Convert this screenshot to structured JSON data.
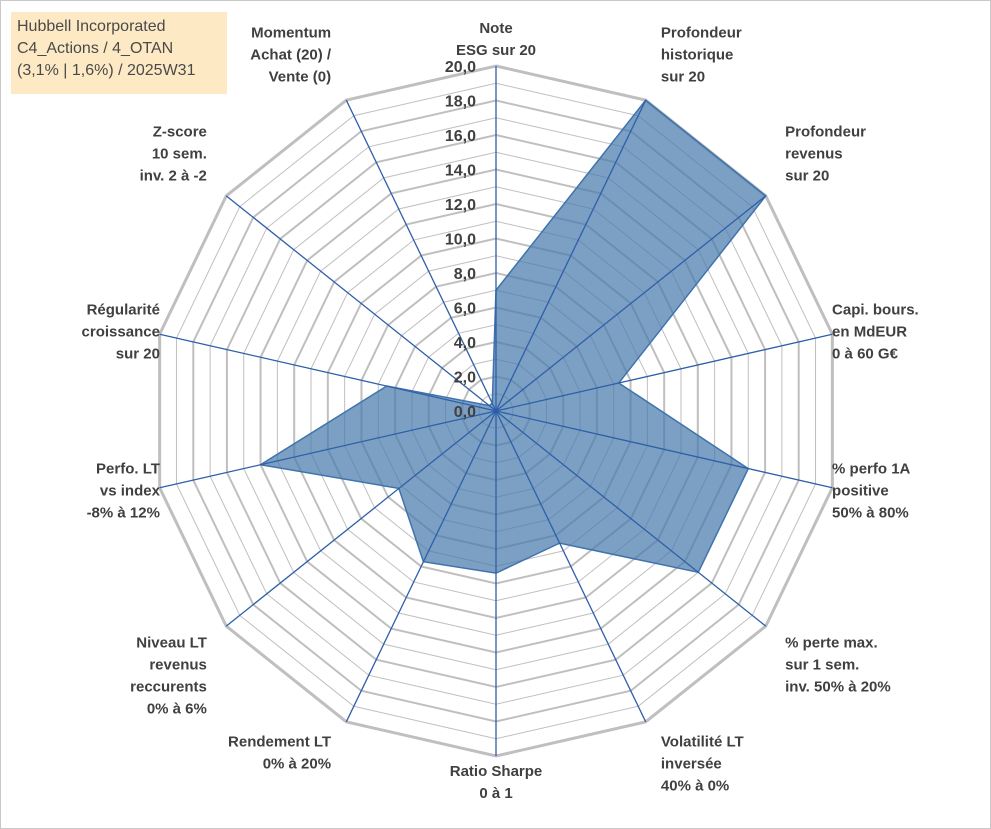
{
  "title_box": {
    "line1": "Hubbell Incorporated",
    "line2": "C4_Actions / 4_OTAN",
    "line3": "(3,1% | 1,6%) / 2025W31"
  },
  "chart_data": {
    "type": "radar",
    "rmin": 0,
    "rmax": 20,
    "tick_step": 2,
    "tick_labels": [
      "0,0",
      "2,0",
      "4,0",
      "6,0",
      "8,0",
      "10,0",
      "12,0",
      "14,0",
      "16,0",
      "18,0",
      "20,0"
    ],
    "grid": true,
    "axes": [
      {
        "label": [
          "Note",
          "ESG sur 20"
        ]
      },
      {
        "label": [
          "Profondeur",
          "historique",
          "sur 20"
        ]
      },
      {
        "label": [
          "Profondeur",
          "revenus",
          "sur 20"
        ]
      },
      {
        "label": [
          "Capi. bours.",
          "en MdEUR",
          "0 à 60 G€"
        ]
      },
      {
        "label": [
          "% perfo 1A",
          "positive",
          "50% à 80%"
        ]
      },
      {
        "label": [
          "% perte max.",
          "sur 1 sem.",
          "inv. 50% à 20%"
        ]
      },
      {
        "label": [
          "Volatilité LT",
          "inversée",
          "40% à 0%"
        ]
      },
      {
        "label": [
          "Ratio Sharpe",
          "0 à 1"
        ]
      },
      {
        "label": [
          "Rendement LT",
          "0% à 20%"
        ]
      },
      {
        "label": [
          "Niveau LT",
          "revenus",
          "reccurents",
          "0% à 6%"
        ]
      },
      {
        "label": [
          "Perfo. LT",
          "vs index",
          "-8% à 12%"
        ]
      },
      {
        "label": [
          "Régularité",
          "croissance",
          "sur 20"
        ]
      },
      {
        "label": [
          "Z-score",
          "10 sem.",
          "inv. 2 à -2"
        ]
      },
      {
        "label": [
          "Momentum",
          "Achat (20) /",
          "Vente (0)"
        ]
      }
    ],
    "series": [
      {
        "values": [
          7.0,
          20.0,
          20.0,
          7.3,
          15.0,
          15.0,
          8.5,
          9.4,
          9.7,
          7.2,
          14.0,
          6.5,
          0.5,
          0.5
        ],
        "fill": "#4a7bad",
        "fill_opacity": 0.72,
        "stroke": "#3f73ad"
      }
    ],
    "colors": {
      "grid": "#bfbfbf",
      "spoke": "#2e5fa8",
      "text": "#404040"
    }
  }
}
